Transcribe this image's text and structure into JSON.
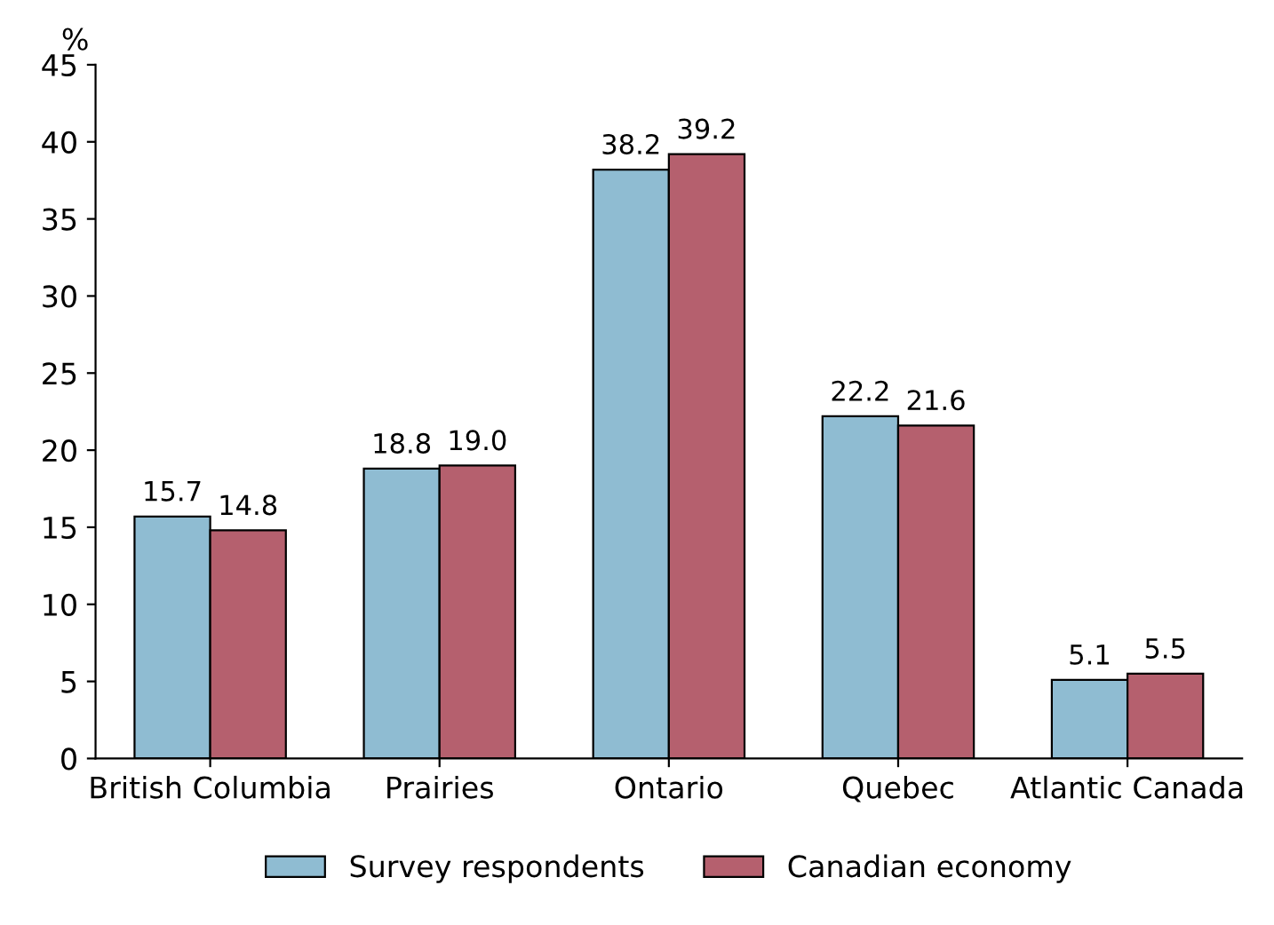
{
  "chart_data": {
    "type": "bar",
    "ylabel": "%",
    "categories": [
      "British Columbia",
      "Prairies",
      "Ontario",
      "Quebec",
      "Atlantic Canada"
    ],
    "series": [
      {
        "name": "Survey respondents",
        "color": "#8fbcd2",
        "values": [
          15.7,
          18.8,
          38.2,
          22.2,
          5.1
        ],
        "value_labels": [
          "15.7",
          "18.8",
          "38.2",
          "22.2",
          "5.1"
        ]
      },
      {
        "name": "Canadian economy",
        "color": "#b5606e",
        "values": [
          14.8,
          19.0,
          39.2,
          21.6,
          5.5
        ],
        "value_labels": [
          "14.8",
          "19.0",
          "39.2",
          "21.6",
          "5.5"
        ]
      }
    ],
    "ylim": [
      0,
      45
    ],
    "yticks": [
      0,
      5,
      10,
      15,
      20,
      25,
      30,
      35,
      40,
      45
    ],
    "grid": false,
    "legend": "bottom"
  }
}
